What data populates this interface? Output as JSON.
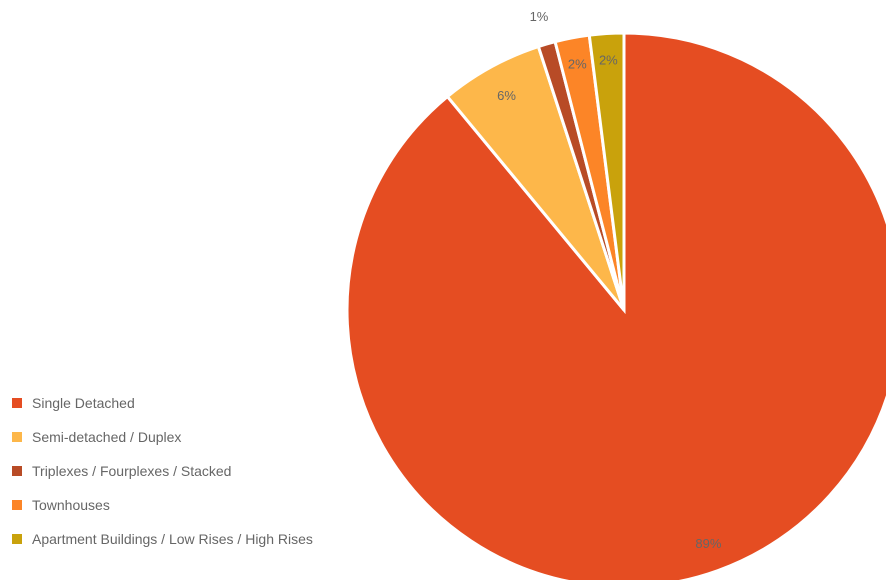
{
  "chart_data": {
    "type": "pie",
    "title": "",
    "start_angle_deg": 0,
    "direction": "clockwise",
    "legend_position": "left-bottom",
    "slices": [
      {
        "label": "Single Detached",
        "value": 89,
        "display": "89%",
        "color": "#e54d22"
      },
      {
        "label": "Semi-detached / Duplex",
        "value": 6,
        "display": "6%",
        "color": "#fdb74a"
      },
      {
        "label": "Triplexes / Fourplexes / Stacked",
        "value": 1,
        "display": "1%",
        "color": "#b84b26"
      },
      {
        "label": "Townhouses",
        "value": 2,
        "display": "2%",
        "color": "#fc8527"
      },
      {
        "label": "Apartment Buildings / Low Rises / High Rises",
        "value": 2,
        "display": "2%",
        "color": "#c9a20c"
      }
    ]
  }
}
